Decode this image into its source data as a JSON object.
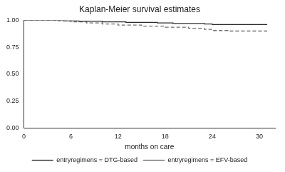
{
  "chart_data": {
    "type": "step",
    "title": "Kaplan-Meier survival estimates",
    "x_label": "months on care",
    "xlim": [
      0,
      32
    ],
    "xticks": [
      0,
      6,
      12,
      18,
      24,
      30
    ],
    "ylim": [
      0,
      1
    ],
    "yticks": [
      {
        "value": 0,
        "label": "0.00"
      },
      0.25,
      {
        "value": 0.5,
        "label": "0.50"
      },
      0.75,
      {
        "value": 1,
        "label": "1.00"
      }
    ],
    "grid": false,
    "legend": "bottom",
    "series": [
      {
        "name": "entryregimens = DTG-based",
        "color": "#2b2b2b",
        "line_style": "solid",
        "x": [
          0,
          5,
          7,
          10,
          13,
          17,
          19,
          23,
          24,
          31
        ],
        "values": [
          1.0,
          0.995,
          0.99,
          0.985,
          0.98,
          0.975,
          0.97,
          0.965,
          0.96,
          0.96
        ]
      },
      {
        "name": "entryregimens = EFV-based",
        "color": "#6e6e6e",
        "line_style": "dashed",
        "x": [
          0,
          4,
          6,
          8,
          10,
          12,
          15,
          18,
          21,
          23,
          24,
          26,
          31
        ],
        "values": [
          1.0,
          0.995,
          0.985,
          0.975,
          0.965,
          0.955,
          0.945,
          0.935,
          0.925,
          0.915,
          0.905,
          0.9,
          0.9
        ]
      }
    ]
  }
}
